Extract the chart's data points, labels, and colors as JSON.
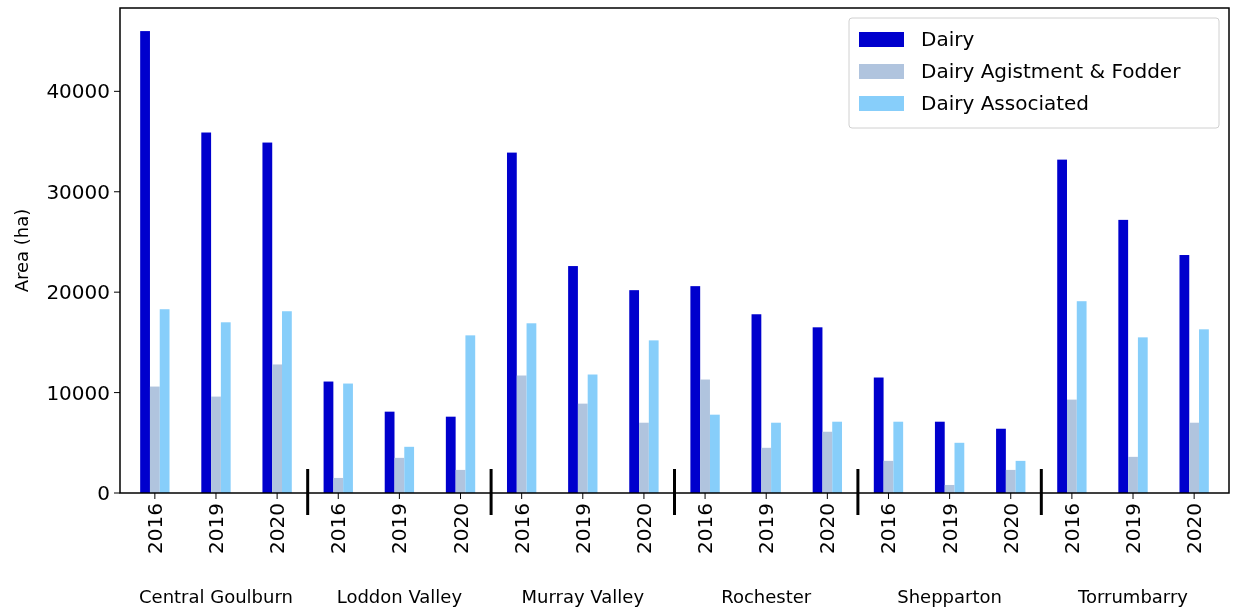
{
  "chart_data": {
    "type": "bar",
    "ylabel": "Area (ha)",
    "categories": [
      "2016",
      "2019",
      "2020",
      "2016",
      "2019",
      "2020",
      "2016",
      "2019",
      "2020",
      "2016",
      "2019",
      "2020",
      "2016",
      "2019",
      "2020",
      "2016",
      "2019",
      "2020"
    ],
    "series": [
      {
        "name": "Dairy",
        "color": "#0000cd",
        "values": [
          46000,
          35900,
          34900,
          11100,
          8100,
          7600,
          33900,
          22600,
          20200,
          20600,
          17800,
          16500,
          11500,
          7100,
          6400,
          33200,
          27200,
          23700
        ]
      },
      {
        "name": "Dairy Agistment & Fodder",
        "color": "#b0c4de",
        "values": [
          10600,
          9600,
          12800,
          1500,
          3500,
          2300,
          11700,
          8900,
          7000,
          11300,
          4500,
          6100,
          3200,
          800,
          2300,
          9300,
          3600,
          7000
        ]
      },
      {
        "name": "Dairy Associated",
        "color": "#87cefa",
        "values": [
          18300,
          17000,
          18100,
          10900,
          4600,
          15700,
          16900,
          11800,
          15200,
          7800,
          7000,
          7100,
          7100,
          5000,
          3200,
          19100,
          15500,
          16300
        ]
      }
    ],
    "annotations": [
      "Central Goulburn",
      "Loddon Valley",
      "Murray Valley",
      "Rochester",
      "Shepparton",
      "Torrumbarry"
    ],
    "ylim": [
      0,
      48300
    ],
    "yticks": [
      0,
      10000,
      20000,
      30000,
      40000
    ],
    "grid": false,
    "legend": "top right"
  }
}
